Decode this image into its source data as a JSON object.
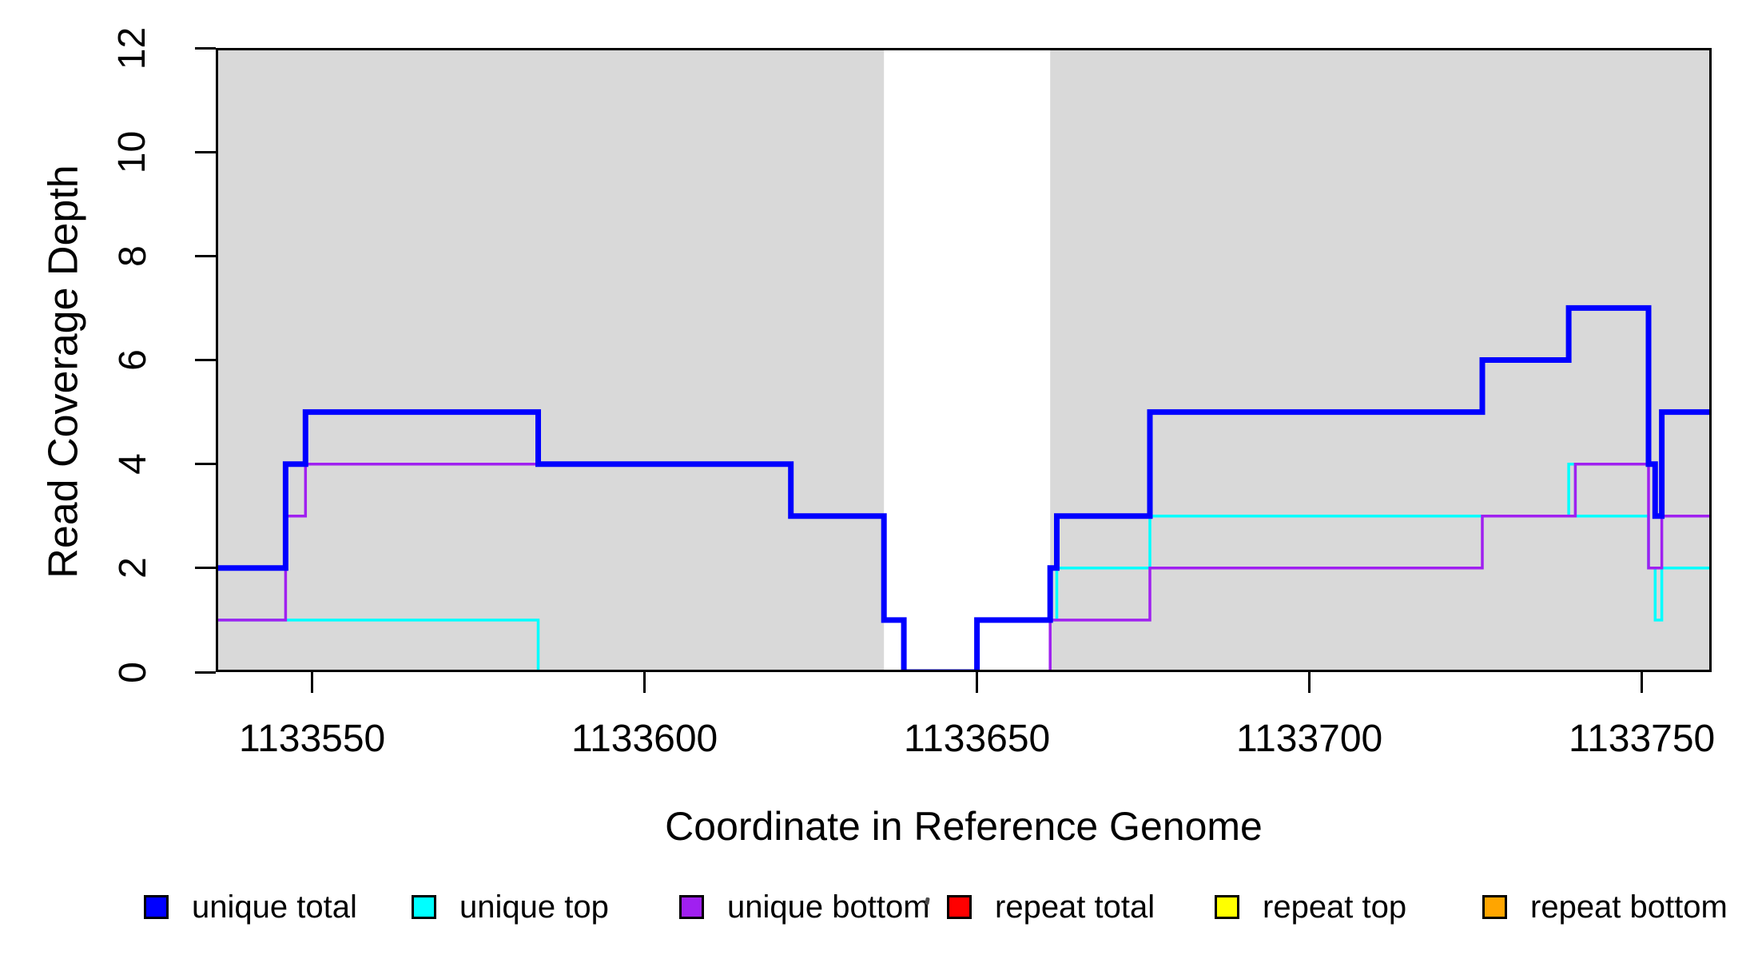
{
  "figure": {
    "background": "#ffffff",
    "text_color": "#000000",
    "box_color": "#000000"
  },
  "chart_data": {
    "type": "line",
    "subtype": "step",
    "title": "",
    "xlabel": "Coordinate in Reference Genome",
    "ylabel": "Read Coverage Depth",
    "xlim": [
      1133535.5,
      1133760.5
    ],
    "ylim": [
      0,
      12
    ],
    "x_ticks": [
      1133550,
      1133600,
      1133650,
      1133700,
      1133750
    ],
    "y_ticks": [
      0,
      2,
      4,
      6,
      8,
      10,
      12
    ],
    "grid": false,
    "legend_position": "bottom",
    "shaded_color": "#d9d9d9",
    "shaded_regions": [
      [
        1133535.5,
        1133636
      ],
      [
        1133661,
        1133760.5
      ]
    ],
    "series": [
      {
        "name": "unique total",
        "color": "#0000ff",
        "step_points": [
          [
            1133535.5,
            2
          ],
          [
            1133546,
            4
          ],
          [
            1133549,
            5
          ],
          [
            1133584,
            4
          ],
          [
            1133622,
            3
          ],
          [
            1133636,
            1
          ],
          [
            1133639,
            0
          ],
          [
            1133650,
            1
          ],
          [
            1133661,
            2
          ],
          [
            1133662,
            3
          ],
          [
            1133676,
            5
          ],
          [
            1133726,
            6
          ],
          [
            1133739,
            7
          ],
          [
            1133751,
            4
          ],
          [
            1133752,
            3
          ],
          [
            1133753,
            5
          ],
          [
            1133760.5,
            5
          ]
        ]
      },
      {
        "name": "unique top",
        "color": "#00ffff",
        "step_points": [
          [
            1133535.5,
            1
          ],
          [
            1133584,
            0
          ],
          [
            1133650,
            1
          ],
          [
            1133662,
            2
          ],
          [
            1133676,
            3
          ],
          [
            1133739,
            4
          ],
          [
            1133740,
            3
          ],
          [
            1133751,
            2
          ],
          [
            1133752,
            1
          ],
          [
            1133753,
            2
          ],
          [
            1133760.5,
            2
          ]
        ]
      },
      {
        "name": "unique bottom",
        "color": "#a020f0",
        "step_points": [
          [
            1133535.5,
            1
          ],
          [
            1133546,
            3
          ],
          [
            1133549,
            4
          ],
          [
            1133622,
            3
          ],
          [
            1133636,
            1
          ],
          [
            1133639,
            0
          ],
          [
            1133661,
            1
          ],
          [
            1133676,
            2
          ],
          [
            1133726,
            3
          ],
          [
            1133740,
            4
          ],
          [
            1133751,
            2
          ],
          [
            1133753,
            3
          ],
          [
            1133760.5,
            3
          ]
        ]
      },
      {
        "name": "repeat total",
        "color": "#ff0000",
        "step_points": [
          [
            1133535.5,
            0
          ],
          [
            1133760.5,
            0
          ]
        ]
      },
      {
        "name": "repeat top",
        "color": "#ffff00",
        "step_points": [
          [
            1133535.5,
            0
          ],
          [
            1133760.5,
            0
          ]
        ]
      },
      {
        "name": "repeat bottom",
        "color": "#ffa500",
        "step_points": [
          [
            1133535.5,
            0
          ],
          [
            1133760.5,
            0
          ]
        ]
      }
    ]
  }
}
